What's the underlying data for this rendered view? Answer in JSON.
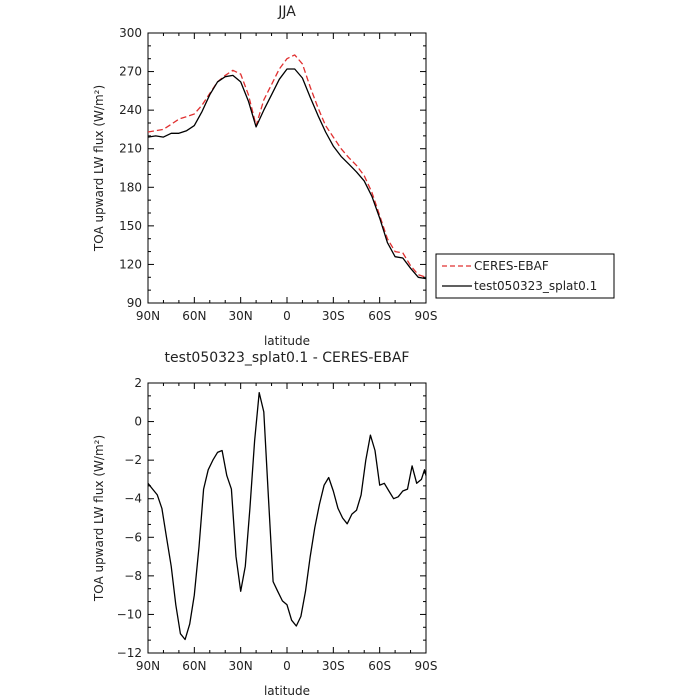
{
  "chart_data": [
    {
      "type": "line",
      "title": "JJA",
      "xlabel": "latitude",
      "ylabel": "TOA upward LW flux (W/m²)",
      "xlim": [
        90,
        -90
      ],
      "ylim": [
        90,
        300
      ],
      "xticks": [
        90,
        60,
        30,
        0,
        -30,
        -60,
        -90
      ],
      "xtick_labels": [
        "90N",
        "60N",
        "30N",
        "0",
        "30S",
        "60S",
        "90S"
      ],
      "yticks": [
        90,
        120,
        150,
        180,
        210,
        240,
        270,
        300
      ],
      "ytick_labels": [
        "90",
        "120",
        "150",
        "180",
        "210",
        "240",
        "270",
        "300"
      ],
      "legend_position": "outside-right",
      "series": [
        {
          "name": "CERES-EBAF",
          "color": "#e03030",
          "dash": "dashed",
          "x": [
            90,
            85,
            80,
            75,
            70,
            65,
            60,
            55,
            50,
            45,
            40,
            35,
            30,
            25,
            20,
            15,
            10,
            5,
            0,
            -5,
            -10,
            -15,
            -20,
            -25,
            -30,
            -35,
            -40,
            -45,
            -50,
            -55,
            -60,
            -65,
            -70,
            -75,
            -80,
            -85,
            -90
          ],
          "y": [
            223,
            224,
            225,
            229,
            233,
            235,
            237,
            244,
            253,
            262,
            267,
            271,
            268,
            252,
            228,
            248,
            260,
            272,
            280,
            283,
            276,
            258,
            242,
            228,
            219,
            210,
            203,
            197,
            189,
            176,
            158,
            140,
            130,
            129,
            119,
            112,
            110
          ]
        },
        {
          "name": "test050323_splat0.1",
          "color": "#000000",
          "dash": "solid",
          "x": [
            90,
            85,
            80,
            75,
            70,
            65,
            60,
            55,
            50,
            45,
            40,
            35,
            30,
            25,
            20,
            15,
            10,
            5,
            0,
            -5,
            -10,
            -15,
            -20,
            -25,
            -30,
            -35,
            -40,
            -45,
            -50,
            -55,
            -60,
            -65,
            -70,
            -75,
            -80,
            -85,
            -90
          ],
          "y": [
            219,
            220,
            219,
            222,
            222,
            224,
            228,
            239,
            252,
            262,
            266,
            267,
            262,
            247,
            227,
            240,
            252,
            264,
            272,
            272,
            265,
            250,
            236,
            223,
            212,
            204,
            198,
            192,
            185,
            173,
            156,
            137,
            126,
            125,
            117,
            110,
            109
          ]
        }
      ]
    },
    {
      "type": "line",
      "title": "test050323_splat0.1 - CERES-EBAF",
      "xlabel": "latitude",
      "ylabel": "TOA upward LW flux (W/m²)",
      "xlim": [
        90,
        -90
      ],
      "ylim": [
        -12,
        2
      ],
      "xticks": [
        90,
        60,
        30,
        0,
        -30,
        -60,
        -90
      ],
      "xtick_labels": [
        "90N",
        "60N",
        "30N",
        "0",
        "30S",
        "60S",
        "90S"
      ],
      "yticks": [
        -12,
        -10,
        -8,
        -6,
        -4,
        -2,
        0,
        2
      ],
      "ytick_labels": [
        "−12",
        "−10",
        "−8",
        "−6",
        "−4",
        "−2",
        "0",
        "2"
      ],
      "series": [
        {
          "color": "#000000",
          "dash": "solid",
          "x": [
            90,
            87,
            84,
            81,
            78,
            75,
            72,
            69,
            66,
            63,
            60,
            57,
            54,
            51,
            48,
            45,
            42,
            39,
            36,
            33,
            30,
            27,
            24,
            21,
            18,
            15,
            12,
            9,
            6,
            3,
            0,
            -3,
            -6,
            -9,
            -12,
            -15,
            -18,
            -21,
            -24,
            -27,
            -30,
            -33,
            -36,
            -39,
            -42,
            -45,
            -48,
            -51,
            -54,
            -57,
            -60,
            -63,
            -66,
            -69,
            -72,
            -75,
            -78,
            -81,
            -84,
            -87,
            -89,
            -90
          ],
          "y": [
            -3.2,
            -3.5,
            -3.8,
            -4.5,
            -6.0,
            -7.5,
            -9.5,
            -11.0,
            -11.3,
            -10.5,
            -9.0,
            -6.5,
            -3.5,
            -2.5,
            -2.0,
            -1.6,
            -1.5,
            -2.8,
            -3.5,
            -7.0,
            -8.8,
            -7.5,
            -4.5,
            -1.0,
            1.5,
            0.5,
            -4.0,
            -8.3,
            -8.8,
            -9.3,
            -9.5,
            -10.3,
            -10.6,
            -10.1,
            -8.8,
            -7.0,
            -5.5,
            -4.3,
            -3.3,
            -2.9,
            -3.6,
            -4.5,
            -5.0,
            -5.3,
            -4.8,
            -4.6,
            -3.8,
            -2.0,
            -0.7,
            -1.5,
            -3.3,
            -3.2,
            -3.6,
            -4.0,
            -3.9,
            -3.6,
            -3.5,
            -2.3,
            -3.2,
            -3.0,
            -2.5,
            -2.8
          ]
        }
      ]
    }
  ]
}
